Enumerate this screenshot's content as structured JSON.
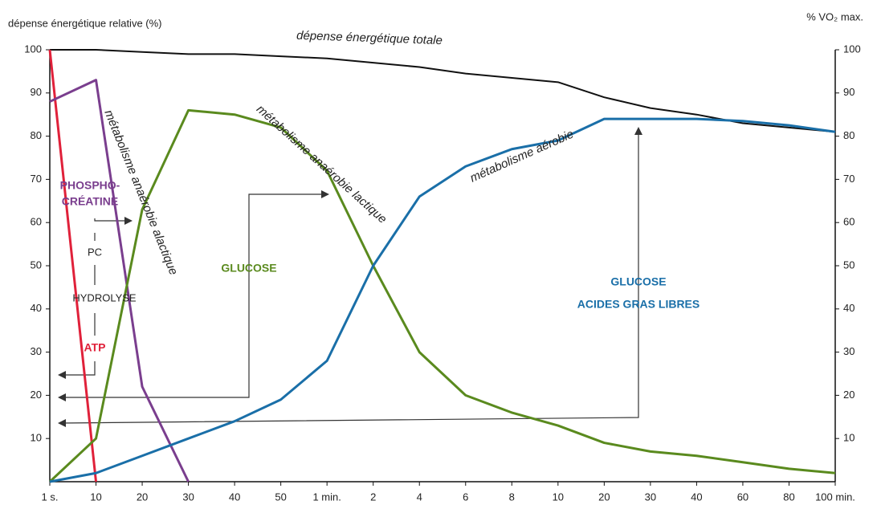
{
  "chart_data": {
    "type": "line",
    "y_label": "dépense énergétique relative (%)",
    "y2_label": "% VO₂ max.",
    "categories": [
      "1 s.",
      "10",
      "20",
      "30",
      "40",
      "50",
      "1 min.",
      "2",
      "4",
      "6",
      "8",
      "10",
      "20",
      "30",
      "40",
      "60",
      "80",
      "100 min."
    ],
    "series": [
      {
        "name": "dépense énergétique totale",
        "color": "#111111",
        "values": [
          100,
          100,
          99.5,
          99,
          99,
          98.5,
          98,
          97,
          96,
          94.5,
          93.5,
          92.5,
          89,
          86.5,
          85,
          83,
          82,
          81
        ]
      },
      {
        "name": "ATP",
        "color": "#e0213a",
        "values": [
          100,
          0,
          null,
          null,
          null,
          null,
          null,
          null,
          null,
          null,
          null,
          null,
          null,
          null,
          null,
          null,
          null,
          null
        ]
      },
      {
        "name": "métabolisme anaérobie alactique",
        "color": "#7a3e8e",
        "values": [
          88,
          93,
          22,
          0,
          null,
          null,
          null,
          null,
          null,
          null,
          null,
          null,
          null,
          null,
          null,
          null,
          null,
          null
        ]
      },
      {
        "name": "métabolisme anaérobie lactique",
        "color": "#5a8a1e",
        "values": [
          0,
          10,
          63,
          86,
          85,
          82,
          72,
          50,
          30,
          20,
          16,
          13,
          9,
          7,
          6,
          4.5,
          3,
          2
        ]
      },
      {
        "name": "métabolisme aérobie",
        "color": "#1a6fa8",
        "values": [
          0,
          2,
          6,
          10,
          14,
          19,
          28,
          50,
          66,
          73,
          77,
          79,
          84,
          84,
          84,
          83.5,
          82.5,
          81
        ]
      }
    ],
    "annotations": [
      "PHOSPHO-",
      "CRÉATINE",
      "PC",
      "HYDROLYSE",
      "ATP",
      "GLUCOSE",
      "GLUCOSE",
      "ACIDES GRAS LIBRES"
    ],
    "ylim": [
      0,
      100
    ],
    "yticks": [
      10,
      20,
      30,
      40,
      50,
      60,
      70,
      80,
      90,
      100
    ],
    "y2lim": [
      0,
      100
    ],
    "y2ticks": [
      10,
      20,
      30,
      40,
      50,
      60,
      70,
      80,
      90,
      100
    ]
  }
}
